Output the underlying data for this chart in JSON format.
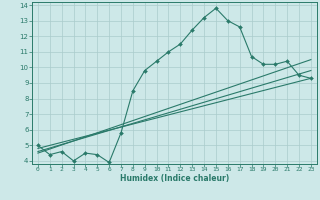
{
  "xlabel": "Humidex (Indice chaleur)",
  "bg_color": "#cde8e8",
  "grid_color": "#aacccc",
  "line_color": "#2a7a6a",
  "xlim": [
    -0.5,
    23.5
  ],
  "ylim": [
    3.8,
    14.2
  ],
  "xticks": [
    0,
    1,
    2,
    3,
    4,
    5,
    6,
    7,
    8,
    9,
    10,
    11,
    12,
    13,
    14,
    15,
    16,
    17,
    18,
    19,
    20,
    21,
    22,
    23
  ],
  "yticks": [
    4,
    5,
    6,
    7,
    8,
    9,
    10,
    11,
    12,
    13,
    14
  ],
  "main_x": [
    0,
    1,
    2,
    3,
    4,
    5,
    6,
    7,
    8,
    9,
    10,
    11,
    12,
    13,
    14,
    15,
    16,
    17,
    18,
    19,
    20,
    21,
    22,
    23
  ],
  "main_y": [
    5.0,
    4.4,
    4.6,
    4.0,
    4.5,
    4.4,
    3.9,
    5.8,
    8.5,
    9.8,
    10.4,
    11.0,
    11.5,
    12.4,
    13.2,
    13.8,
    13.0,
    12.6,
    10.7,
    10.2,
    10.2,
    10.4,
    9.5,
    9.3
  ],
  "line2_x": [
    0,
    23
  ],
  "line2_y": [
    4.5,
    10.5
  ],
  "line3_x": [
    0,
    23
  ],
  "line3_y": [
    4.8,
    9.3
  ],
  "line4_x": [
    0,
    23
  ],
  "line4_y": [
    4.6,
    9.8
  ]
}
